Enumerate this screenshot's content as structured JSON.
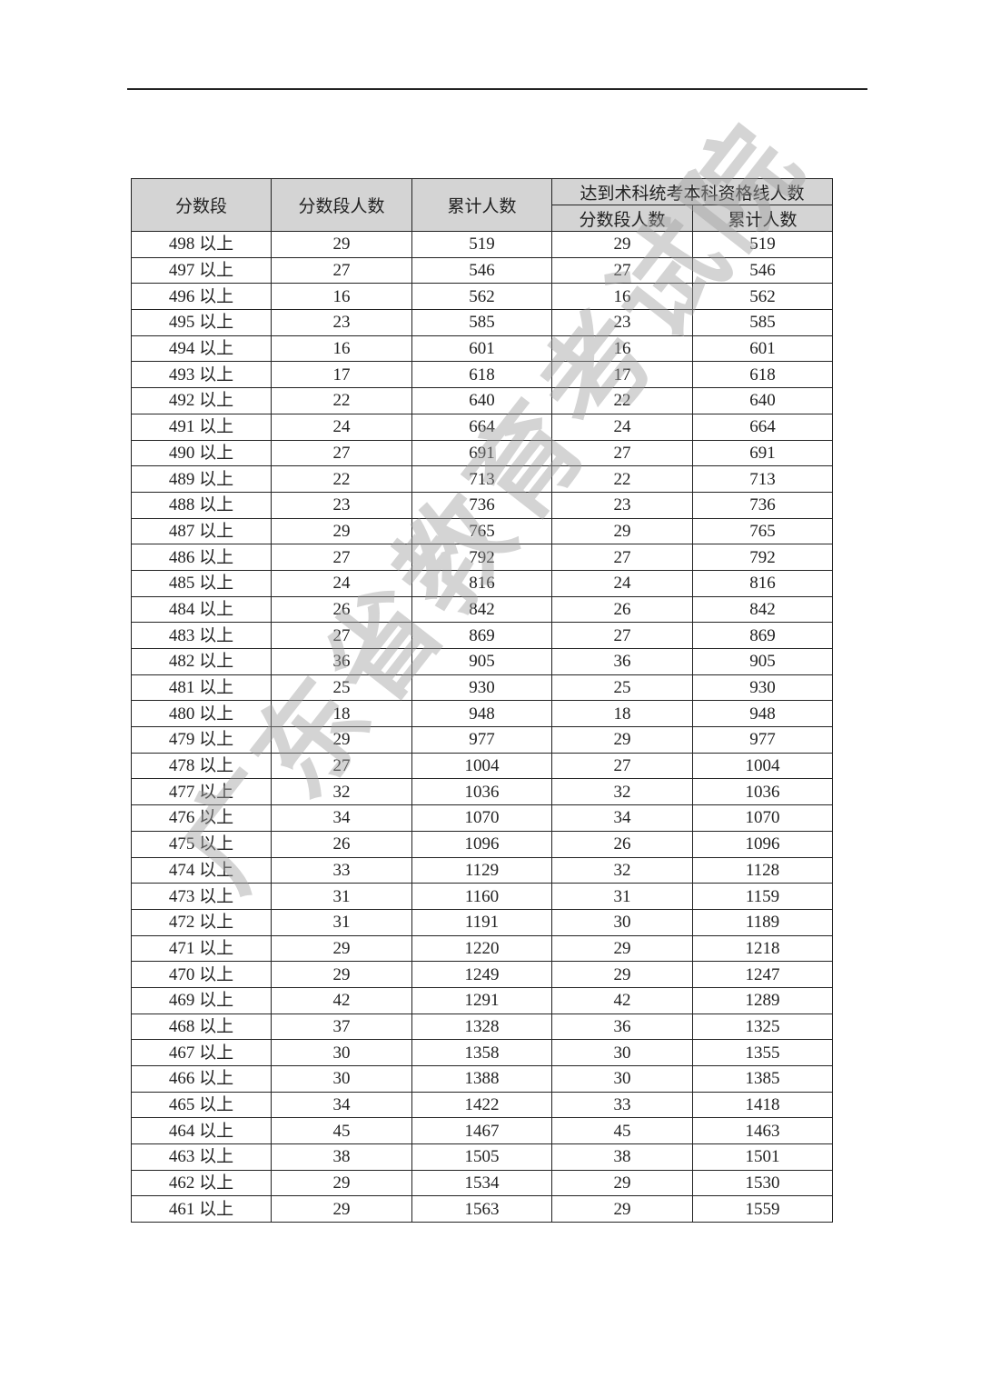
{
  "watermark": "广东省教育考试院",
  "table": {
    "headers": {
      "score_band": "分数段",
      "band_count": "分数段人数",
      "cumulative": "累计人数",
      "qualified_group": "达到术科统考本科资格线人数",
      "qualified_band_count": "分数段人数",
      "qualified_cumulative": "累计人数"
    },
    "rows": [
      [
        "498 以上",
        "29",
        "519",
        "29",
        "519"
      ],
      [
        "497 以上",
        "27",
        "546",
        "27",
        "546"
      ],
      [
        "496 以上",
        "16",
        "562",
        "16",
        "562"
      ],
      [
        "495 以上",
        "23",
        "585",
        "23",
        "585"
      ],
      [
        "494 以上",
        "16",
        "601",
        "16",
        "601"
      ],
      [
        "493 以上",
        "17",
        "618",
        "17",
        "618"
      ],
      [
        "492 以上",
        "22",
        "640",
        "22",
        "640"
      ],
      [
        "491 以上",
        "24",
        "664",
        "24",
        "664"
      ],
      [
        "490 以上",
        "27",
        "691",
        "27",
        "691"
      ],
      [
        "489 以上",
        "22",
        "713",
        "22",
        "713"
      ],
      [
        "488 以上",
        "23",
        "736",
        "23",
        "736"
      ],
      [
        "487 以上",
        "29",
        "765",
        "29",
        "765"
      ],
      [
        "486 以上",
        "27",
        "792",
        "27",
        "792"
      ],
      [
        "485 以上",
        "24",
        "816",
        "24",
        "816"
      ],
      [
        "484 以上",
        "26",
        "842",
        "26",
        "842"
      ],
      [
        "483 以上",
        "27",
        "869",
        "27",
        "869"
      ],
      [
        "482 以上",
        "36",
        "905",
        "36",
        "905"
      ],
      [
        "481 以上",
        "25",
        "930",
        "25",
        "930"
      ],
      [
        "480 以上",
        "18",
        "948",
        "18",
        "948"
      ],
      [
        "479 以上",
        "29",
        "977",
        "29",
        "977"
      ],
      [
        "478 以上",
        "27",
        "1004",
        "27",
        "1004"
      ],
      [
        "477 以上",
        "32",
        "1036",
        "32",
        "1036"
      ],
      [
        "476 以上",
        "34",
        "1070",
        "34",
        "1070"
      ],
      [
        "475 以上",
        "26",
        "1096",
        "26",
        "1096"
      ],
      [
        "474 以上",
        "33",
        "1129",
        "32",
        "1128"
      ],
      [
        "473 以上",
        "31",
        "1160",
        "31",
        "1159"
      ],
      [
        "472 以上",
        "31",
        "1191",
        "30",
        "1189"
      ],
      [
        "471 以上",
        "29",
        "1220",
        "29",
        "1218"
      ],
      [
        "470 以上",
        "29",
        "1249",
        "29",
        "1247"
      ],
      [
        "469 以上",
        "42",
        "1291",
        "42",
        "1289"
      ],
      [
        "468 以上",
        "37",
        "1328",
        "36",
        "1325"
      ],
      [
        "467 以上",
        "30",
        "1358",
        "30",
        "1355"
      ],
      [
        "466 以上",
        "30",
        "1388",
        "30",
        "1385"
      ],
      [
        "465 以上",
        "34",
        "1422",
        "33",
        "1418"
      ],
      [
        "464 以上",
        "45",
        "1467",
        "45",
        "1463"
      ],
      [
        "463 以上",
        "38",
        "1505",
        "38",
        "1501"
      ],
      [
        "462 以上",
        "29",
        "1534",
        "29",
        "1530"
      ],
      [
        "461 以上",
        "29",
        "1563",
        "29",
        "1559"
      ]
    ]
  }
}
